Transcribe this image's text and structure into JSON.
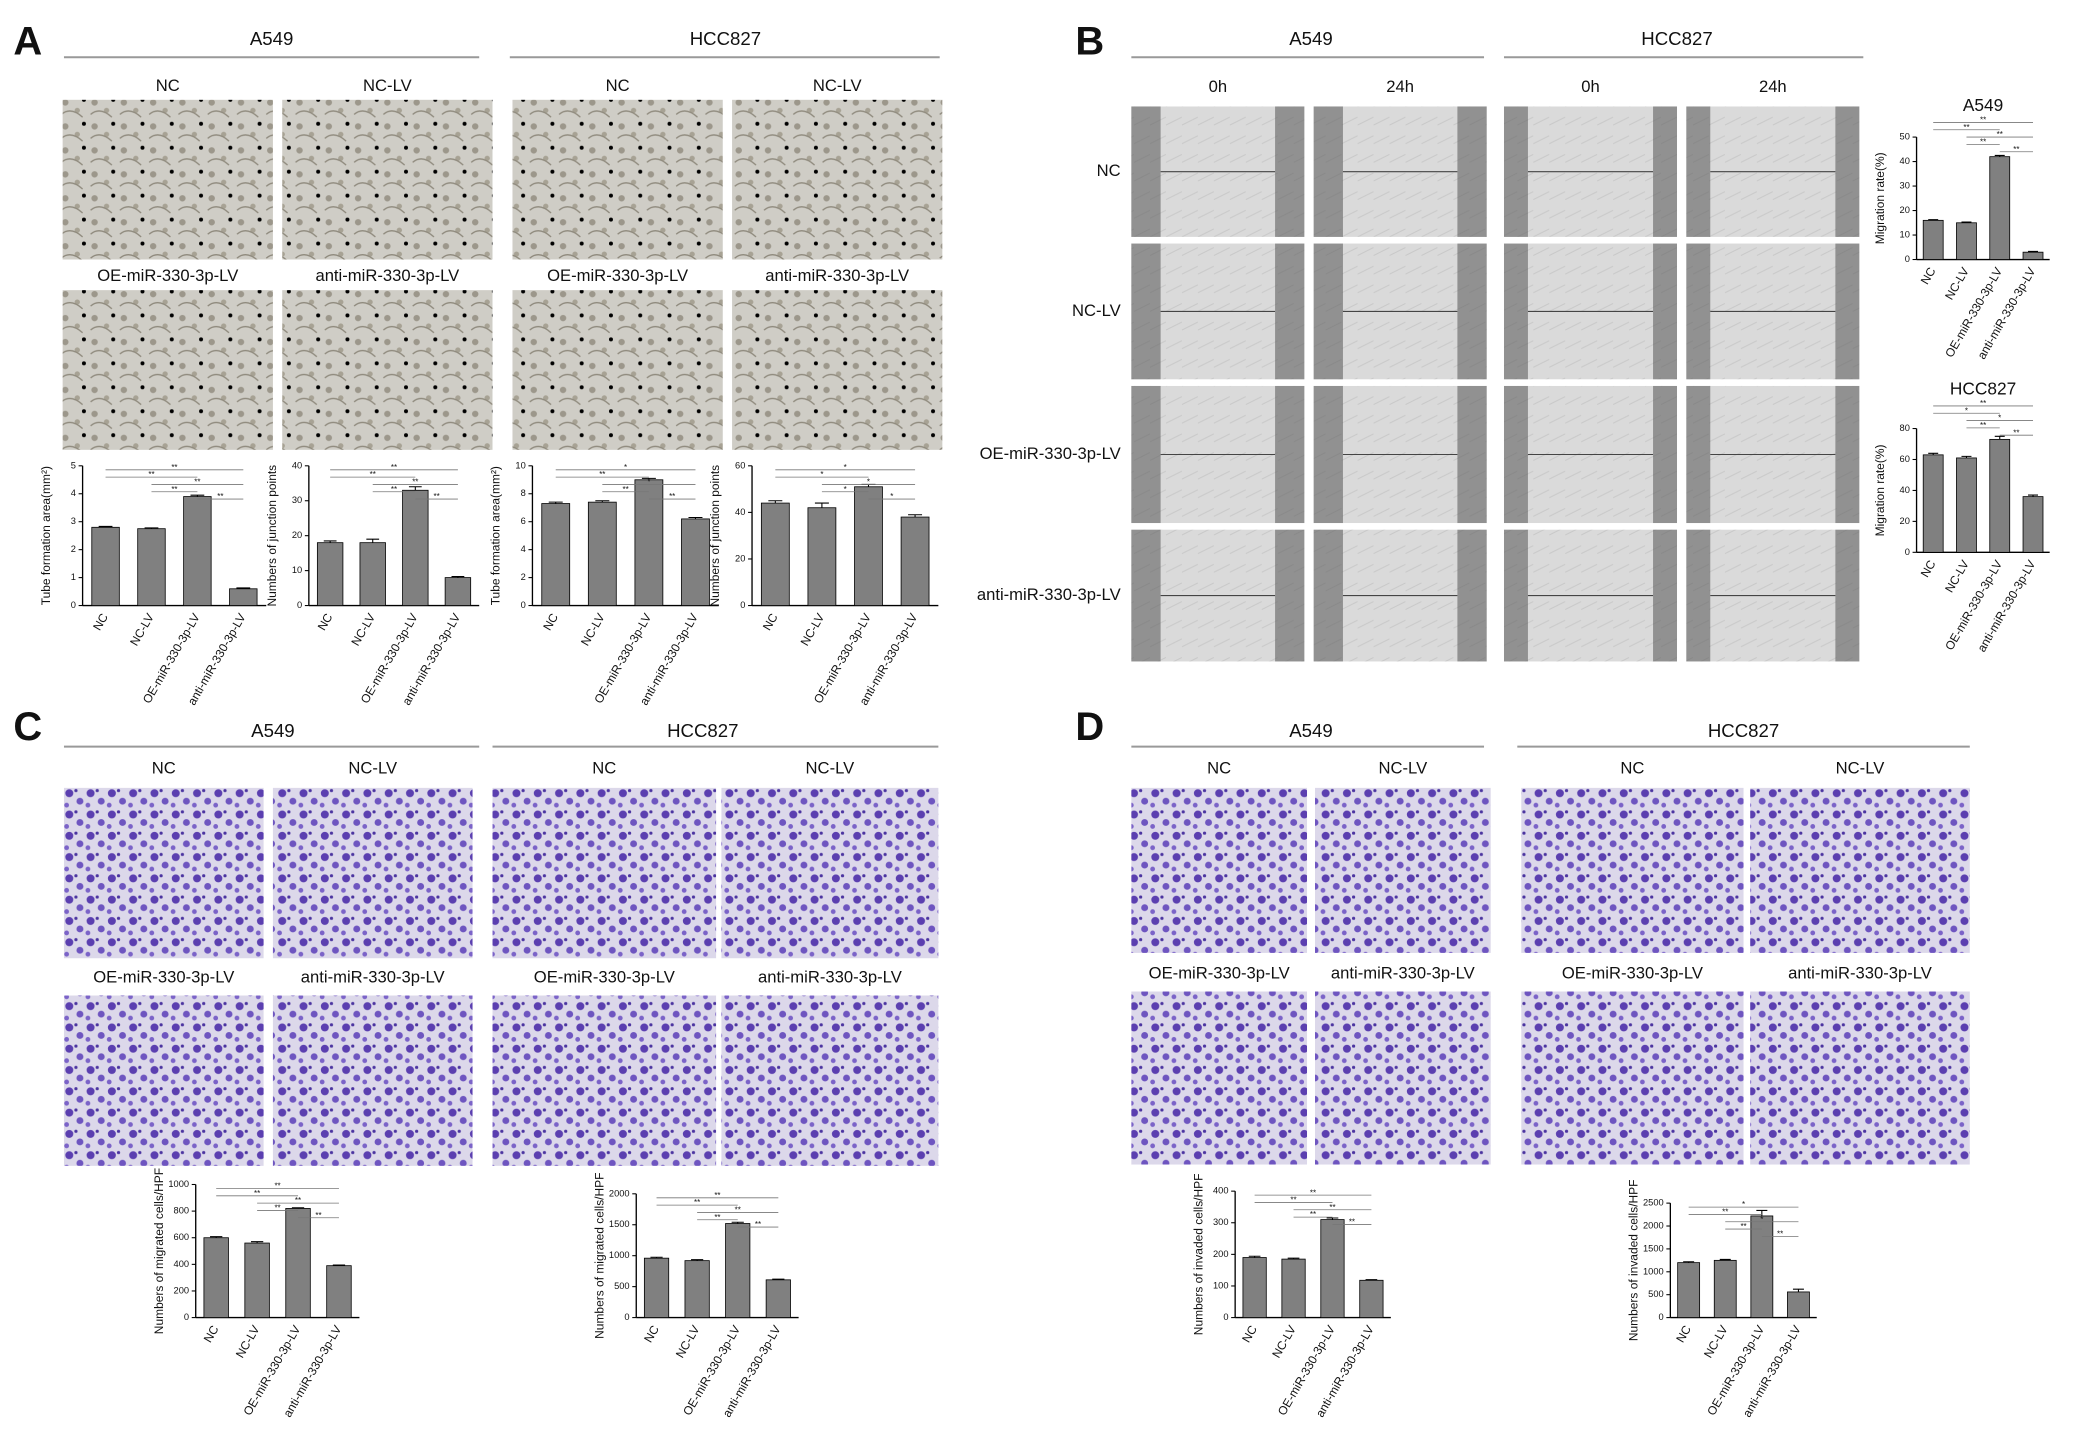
{
  "figure": {
    "panels": [
      {
        "letter": "A",
        "groups": [
          {
            "title": "A549",
            "images": [
              "NC",
              "NC-LV",
              "OE-miR-330-3p-LV",
              "anti-miR-330-3p-LV"
            ]
          },
          {
            "title": "HCC827",
            "images": [
              "NC",
              "NC-LV",
              "OE-miR-330-3p-LV",
              "anti-miR-330-3p-LV"
            ]
          }
        ]
      },
      {
        "letter": "B",
        "groups": [
          {
            "title": "A549",
            "times": [
              "0h",
              "24h"
            ]
          },
          {
            "title": "HCC827",
            "times": [
              "0h",
              "24h"
            ]
          }
        ],
        "rows": [
          "NC",
          "NC-LV",
          "OE-miR-330-3p-LV",
          "anti-miR-330-3p-LV"
        ]
      },
      {
        "letter": "C",
        "groups": [
          {
            "title": "A549",
            "images": [
              "NC",
              "NC-LV",
              "OE-miR-330-3p-LV",
              "anti-miR-330-3p-LV"
            ]
          },
          {
            "title": "HCC827",
            "images": [
              "NC",
              "NC-LV",
              "OE-miR-330-3p-LV",
              "anti-miR-330-3p-LV"
            ]
          }
        ]
      },
      {
        "letter": "D",
        "groups": [
          {
            "title": "A549",
            "images": [
              "NC",
              "NC-LV",
              "OE-miR-330-3p-LV",
              "anti-miR-330-3p-LV"
            ]
          },
          {
            "title": "HCC827",
            "images": [
              "NC",
              "NC-LV",
              "OE-miR-330-3p-LV",
              "anti-miR-330-3p-LV"
            ]
          }
        ]
      }
    ]
  },
  "chart_data": [
    {
      "type": "bar",
      "ylabel": "Tube formation area(mm²)",
      "categories": [
        "NC",
        "NC-LV",
        "OE-miR-330-3p-LV",
        "anti-miR-330-3p-LV"
      ],
      "values": [
        2.8,
        2.75,
        3.9,
        0.6
      ],
      "errors": [
        0.03,
        0.03,
        0.05,
        0.03
      ],
      "color": "#808080",
      "ylim": [
        0,
        5
      ],
      "yticks": [
        0,
        1,
        2,
        3,
        4,
        5
      ],
      "significance": [
        {
          "pair": [
            0,
            3
          ],
          "label": "**"
        },
        {
          "pair": [
            0,
            2
          ],
          "label": "**"
        },
        {
          "pair": [
            1,
            3
          ],
          "label": "**"
        },
        {
          "pair": [
            1,
            2
          ],
          "label": "**"
        },
        {
          "pair": [
            2,
            3
          ],
          "label": "**"
        }
      ]
    },
    {
      "type": "bar",
      "ylabel": "Numbers of junction points",
      "categories": [
        "NC",
        "NC-LV",
        "OE-miR-330-3p-LV",
        "anti-miR-330-3p-LV"
      ],
      "values": [
        18,
        18,
        33,
        8
      ],
      "errors": [
        0.5,
        1,
        1,
        0.3
      ],
      "color": "#808080",
      "ylim": [
        0,
        40
      ],
      "yticks": [
        0,
        10,
        20,
        30,
        40
      ],
      "significance": [
        {
          "pair": [
            0,
            3
          ],
          "label": "**"
        },
        {
          "pair": [
            0,
            2
          ],
          "label": "**"
        },
        {
          "pair": [
            1,
            3
          ],
          "label": "**"
        },
        {
          "pair": [
            1,
            2
          ],
          "label": "**"
        },
        {
          "pair": [
            2,
            3
          ],
          "label": "**"
        }
      ]
    },
    {
      "type": "bar",
      "ylabel": "Tube formation area(mm²)",
      "categories": [
        "NC",
        "NC-LV",
        "OE-miR-330-3p-LV",
        "anti-miR-330-3p-LV"
      ],
      "values": [
        7.3,
        7.4,
        9.0,
        6.2
      ],
      "errors": [
        0.1,
        0.1,
        0.1,
        0.1
      ],
      "color": "#808080",
      "ylim": [
        0,
        10
      ],
      "yticks": [
        0,
        2,
        4,
        6,
        8,
        10
      ],
      "significance": [
        {
          "pair": [
            0,
            3
          ],
          "label": "*"
        },
        {
          "pair": [
            0,
            2
          ],
          "label": "**"
        },
        {
          "pair": [
            1,
            3
          ],
          "label": "*"
        },
        {
          "pair": [
            1,
            2
          ],
          "label": "**"
        },
        {
          "pair": [
            2,
            3
          ],
          "label": "**"
        }
      ]
    },
    {
      "type": "bar",
      "ylabel": "Numbers of junction points",
      "categories": [
        "NC",
        "NC-LV",
        "OE-miR-330-3p-LV",
        "anti-miR-330-3p-LV"
      ],
      "values": [
        44,
        42,
        51,
        38
      ],
      "errors": [
        1,
        2,
        1,
        1
      ],
      "color": "#808080",
      "ylim": [
        0,
        60
      ],
      "yticks": [
        0,
        20,
        40,
        60
      ],
      "significance": [
        {
          "pair": [
            0,
            3
          ],
          "label": "*"
        },
        {
          "pair": [
            0,
            2
          ],
          "label": "*"
        },
        {
          "pair": [
            1,
            3
          ],
          "label": "*"
        },
        {
          "pair": [
            1,
            2
          ],
          "label": "*"
        },
        {
          "pair": [
            2,
            3
          ],
          "label": "*"
        }
      ]
    },
    {
      "type": "bar",
      "title": "A549",
      "ylabel": "Migration rate(%)",
      "categories": [
        "NC",
        "NC-LV",
        "OE-miR-330-3p-LV",
        "anti-miR-330-3p-LV"
      ],
      "values": [
        16,
        15,
        42,
        3
      ],
      "errors": [
        0.3,
        0.3,
        0.5,
        0.3
      ],
      "color": "#808080",
      "ylim": [
        0,
        50
      ],
      "yticks": [
        0,
        10,
        20,
        30,
        40,
        50
      ],
      "significance": [
        {
          "pair": [
            0,
            3
          ],
          "label": "**"
        },
        {
          "pair": [
            0,
            2
          ],
          "label": "**"
        },
        {
          "pair": [
            1,
            3
          ],
          "label": "**"
        },
        {
          "pair": [
            1,
            2
          ],
          "label": "**"
        },
        {
          "pair": [
            2,
            3
          ],
          "label": "**"
        }
      ]
    },
    {
      "type": "bar",
      "title": "HCC827",
      "ylabel": "Migration rate(%)",
      "categories": [
        "NC",
        "NC-LV",
        "OE-miR-330-3p-LV",
        "anti-miR-330-3p-LV"
      ],
      "values": [
        63,
        61,
        73,
        36
      ],
      "errors": [
        1,
        1,
        2,
        1
      ],
      "color": "#808080",
      "ylim": [
        0,
        80
      ],
      "yticks": [
        0,
        20,
        40,
        60,
        80
      ],
      "significance": [
        {
          "pair": [
            0,
            3
          ],
          "label": "**"
        },
        {
          "pair": [
            0,
            2
          ],
          "label": "*"
        },
        {
          "pair": [
            1,
            3
          ],
          "label": "*"
        },
        {
          "pair": [
            1,
            2
          ],
          "label": "**"
        },
        {
          "pair": [
            2,
            3
          ],
          "label": "**"
        }
      ]
    },
    {
      "type": "bar",
      "ylabel": "Numbers of migrated cells/HPF",
      "categories": [
        "NC",
        "NC-LV",
        "OE-miR-330-3p-LV",
        "anti-miR-330-3p-LV"
      ],
      "values": [
        600,
        560,
        820,
        390
      ],
      "errors": [
        8,
        10,
        5,
        5
      ],
      "color": "#808080",
      "ylim": [
        0,
        1000
      ],
      "yticks": [
        0,
        200,
        400,
        600,
        800,
        1000
      ],
      "significance": [
        {
          "pair": [
            0,
            3
          ],
          "label": "**"
        },
        {
          "pair": [
            0,
            2
          ],
          "label": "**"
        },
        {
          "pair": [
            1,
            3
          ],
          "label": "**"
        },
        {
          "pair": [
            1,
            2
          ],
          "label": "**"
        },
        {
          "pair": [
            2,
            3
          ],
          "label": "**"
        }
      ]
    },
    {
      "type": "bar",
      "ylabel": "Numbers of migrated cells/HPF",
      "categories": [
        "NC",
        "NC-LV",
        "OE-miR-330-3p-LV",
        "anti-miR-330-3p-LV"
      ],
      "values": [
        960,
        920,
        1520,
        610
      ],
      "errors": [
        15,
        15,
        20,
        10
      ],
      "color": "#808080",
      "ylim": [
        0,
        2000
      ],
      "yticks": [
        0,
        500,
        1000,
        1500,
        2000
      ],
      "significance": [
        {
          "pair": [
            0,
            3
          ],
          "label": "**"
        },
        {
          "pair": [
            0,
            2
          ],
          "label": "**"
        },
        {
          "pair": [
            1,
            3
          ],
          "label": "**"
        },
        {
          "pair": [
            1,
            2
          ],
          "label": "**"
        },
        {
          "pair": [
            2,
            3
          ],
          "label": "**"
        }
      ]
    },
    {
      "type": "bar",
      "ylabel": "Numbers of invaded cells/HPF",
      "categories": [
        "NC",
        "NC-LV",
        "OE-miR-330-3p-LV",
        "anti-miR-330-3p-LV"
      ],
      "values": [
        190,
        185,
        310,
        118
      ],
      "errors": [
        4,
        3,
        5,
        2
      ],
      "color": "#808080",
      "ylim": [
        0,
        400
      ],
      "yticks": [
        0,
        100,
        200,
        300,
        400
      ],
      "significance": [
        {
          "pair": [
            0,
            3
          ],
          "label": "**"
        },
        {
          "pair": [
            0,
            2
          ],
          "label": "**"
        },
        {
          "pair": [
            1,
            3
          ],
          "label": "**"
        },
        {
          "pair": [
            1,
            2
          ],
          "label": "**"
        },
        {
          "pair": [
            2,
            3
          ],
          "label": "**"
        }
      ]
    },
    {
      "type": "bar",
      "ylabel": "Numbers of invaded cells/HPF",
      "categories": [
        "NC",
        "NC-LV",
        "OE-miR-330-3p-LV",
        "anti-miR-330-3p-LV"
      ],
      "values": [
        1200,
        1250,
        2220,
        560
      ],
      "errors": [
        20,
        20,
        120,
        60
      ],
      "color": "#808080",
      "ylim": [
        0,
        2500
      ],
      "yticks": [
        0,
        500,
        1000,
        1500,
        2000,
        2500
      ],
      "significance": [
        {
          "pair": [
            0,
            3
          ],
          "label": "*"
        },
        {
          "pair": [
            0,
            2
          ],
          "label": "**"
        },
        {
          "pair": [
            1,
            3
          ],
          "label": "*"
        },
        {
          "pair": [
            1,
            2
          ],
          "label": "**"
        },
        {
          "pair": [
            2,
            3
          ],
          "label": "**"
        }
      ]
    }
  ]
}
